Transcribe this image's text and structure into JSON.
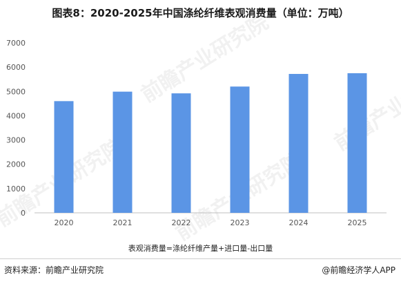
{
  "title": "图表8：2020-2025年中国涤纶纤维表观消费量（单位：万吨）",
  "footnote": "表观消费量=涤纶纤维产量+进口量-出口量",
  "source": "资料来源：前瞻产业研究院",
  "credit": "@前瞻经济学人APP",
  "watermark": "前瞻产业研究院",
  "colors": {
    "bar": "#5b95e5",
    "axis_text": "#555555",
    "grid_axis": "#bfbfbf"
  },
  "chart_data": {
    "type": "bar",
    "title": "图表8：2020-2025年中国涤纶纤维表观消费量（单位：万吨）",
    "categories": [
      "2020",
      "2021",
      "2022",
      "2023",
      "2024",
      "2025"
    ],
    "values": [
      4600,
      4990,
      4920,
      5200,
      5720,
      5750
    ],
    "ylim": [
      0,
      7000
    ],
    "yticks": [
      0,
      1000,
      2000,
      3000,
      4000,
      5000,
      6000,
      7000
    ],
    "grid": false,
    "legend": "none"
  }
}
